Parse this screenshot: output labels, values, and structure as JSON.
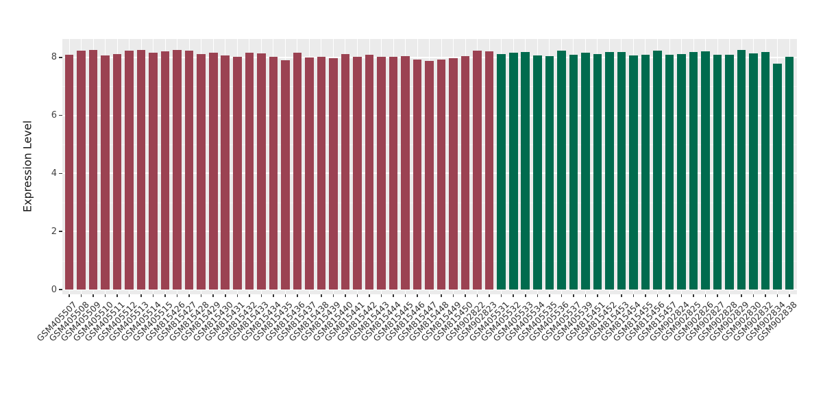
{
  "axis": {
    "y_title": "Expression Level",
    "y_tick_labels": [
      "0",
      "2",
      "4",
      "6",
      "8"
    ],
    "text_color": "#303030",
    "tick_color": "#333333"
  },
  "panel": {
    "background": "#EBEBEB",
    "grid_major_color": "#FFFFFF",
    "grid_minor_color": "#F4F4F4"
  },
  "chart_data": {
    "type": "bar",
    "title": "",
    "xlabel": "",
    "ylabel": "Expression Level",
    "ylim": [
      0,
      8.63
    ],
    "yticks": [
      0,
      2,
      4,
      6,
      8
    ],
    "yticks_minor": [
      1,
      3,
      5,
      7
    ],
    "grid": "horizontal major+minor and per-category vertical, white on gray panel",
    "legend_position": "none",
    "groups": [
      {
        "name": "group1",
        "color": "#9B4252",
        "count": 36
      },
      {
        "name": "group2",
        "color": "#006B4E",
        "count": 25
      }
    ],
    "categories": [
      "GSM405507",
      "GSM405508",
      "GSM405509",
      "GSM405510",
      "GSM405511",
      "GSM405512",
      "GSM405513",
      "GSM405514",
      "GSM405515",
      "GSM815426",
      "GSM815427",
      "GSM815428",
      "GSM815429",
      "GSM815430",
      "GSM815431",
      "GSM815432",
      "GSM815433",
      "GSM815434",
      "GSM815435",
      "GSM815436",
      "GSM815437",
      "GSM815438",
      "GSM815439",
      "GSM815440",
      "GSM815441",
      "GSM815442",
      "GSM815443",
      "GSM815444",
      "GSM815445",
      "GSM815446",
      "GSM815447",
      "GSM815448",
      "GSM815449",
      "GSM815450",
      "GSM902822",
      "GSM902823",
      "GSM405531",
      "GSM405532",
      "GSM405533",
      "GSM405534",
      "GSM405535",
      "GSM405536",
      "GSM405537",
      "GSM405539",
      "GSM815451",
      "GSM815452",
      "GSM815453",
      "GSM815454",
      "GSM815455",
      "GSM815456",
      "GSM815457",
      "GSM902824",
      "GSM902825",
      "GSM902826",
      "GSM902827",
      "GSM902828",
      "GSM902829",
      "GSM902830",
      "GSM902832",
      "GSM902834",
      "GSM902838"
    ],
    "values": [
      8.09,
      8.23,
      8.26,
      8.07,
      8.12,
      8.23,
      8.26,
      8.17,
      8.21,
      8.25,
      8.23,
      8.12,
      8.15,
      8.06,
      8.01,
      8.15,
      8.13,
      8.02,
      7.9,
      8.17,
      7.99,
      8.01,
      7.97,
      8.11,
      8.03,
      8.08,
      8.01,
      8.02,
      8.05,
      7.92,
      7.87,
      7.92,
      7.98,
      8.05,
      8.24,
      8.21,
      8.11,
      8.17,
      8.19,
      8.06,
      8.05,
      8.22,
      8.1,
      8.16,
      8.11,
      8.18,
      8.19,
      8.07,
      8.09,
      8.23,
      8.1,
      8.11,
      8.19,
      8.21,
      8.08,
      8.09,
      8.25,
      8.13,
      8.18,
      7.79,
      8.01
    ],
    "bar_group_index": [
      0,
      0,
      0,
      0,
      0,
      0,
      0,
      0,
      0,
      0,
      0,
      0,
      0,
      0,
      0,
      0,
      0,
      0,
      0,
      0,
      0,
      0,
      0,
      0,
      0,
      0,
      0,
      0,
      0,
      0,
      0,
      0,
      0,
      0,
      0,
      0,
      1,
      1,
      1,
      1,
      1,
      1,
      1,
      1,
      1,
      1,
      1,
      1,
      1,
      1,
      1,
      1,
      1,
      1,
      1,
      1,
      1,
      1,
      1,
      1,
      1
    ]
  }
}
